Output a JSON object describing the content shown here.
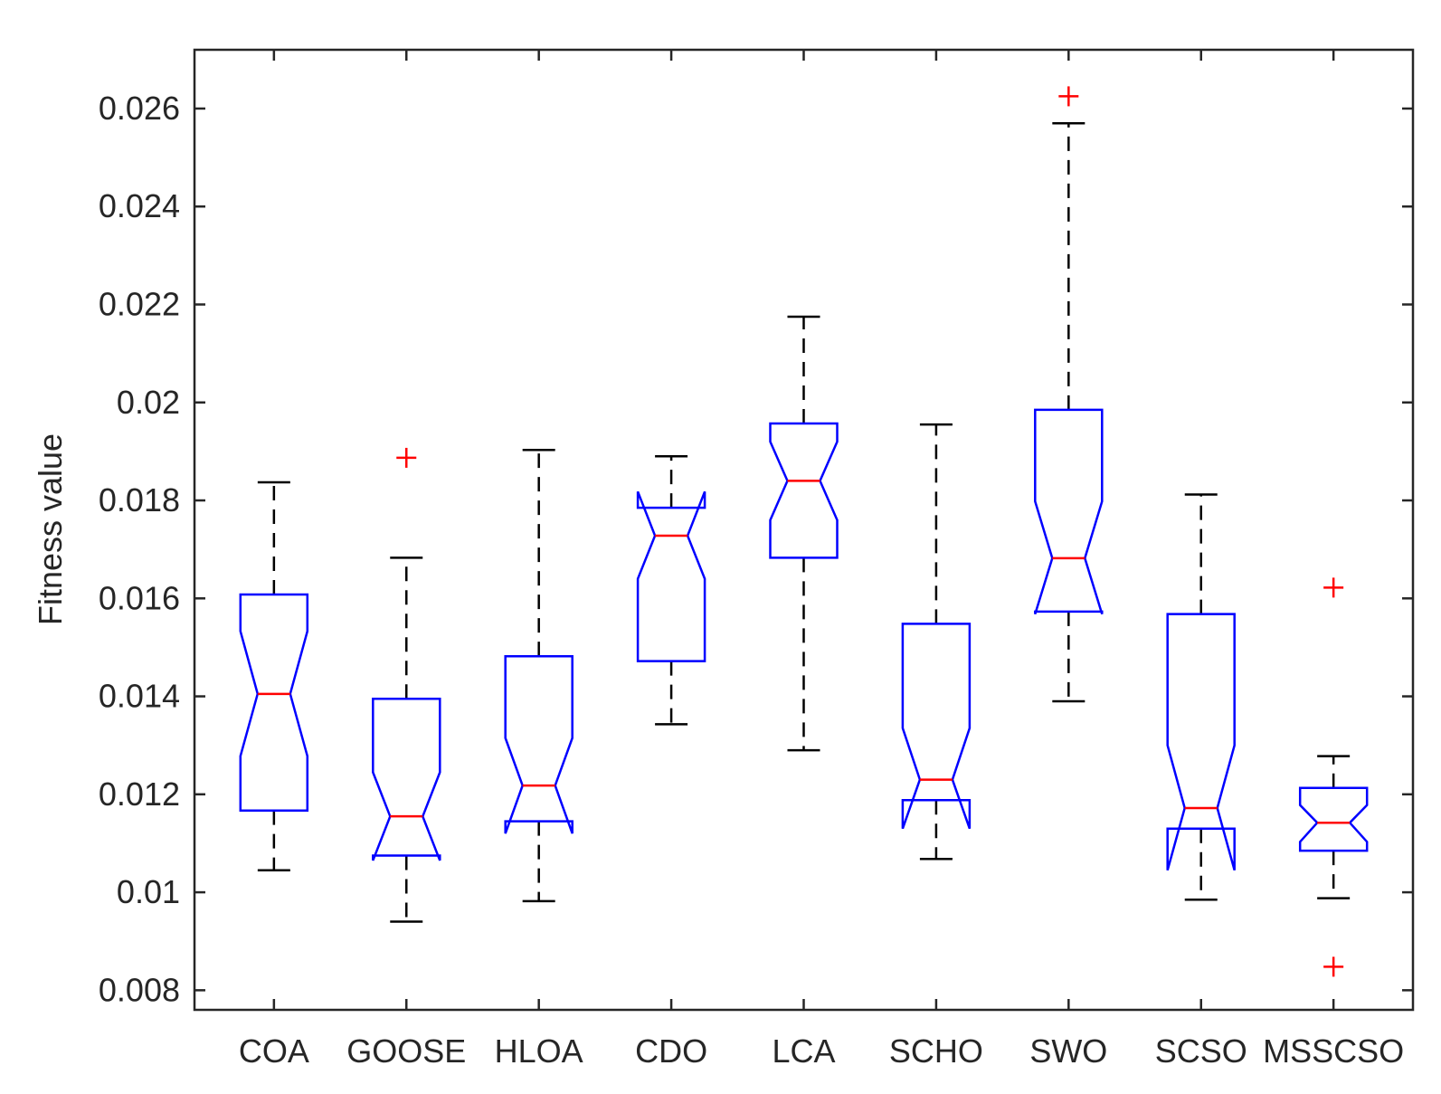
{
  "chart_data": {
    "type": "boxplot",
    "notched": true,
    "title": "",
    "xlabel": "",
    "ylabel": "Fitness value",
    "ylim": [
      0.0076,
      0.0272
    ],
    "yticks": [
      0.008,
      0.01,
      0.012,
      0.014,
      0.016,
      0.018,
      0.02,
      0.022,
      0.024,
      0.026
    ],
    "ytick_labels": [
      "0.008",
      "0.01",
      "0.012",
      "0.014",
      "0.016",
      "0.018",
      "0.02",
      "0.022",
      "0.024",
      "0.026"
    ],
    "categories": [
      "COA",
      "GOOSE",
      "HLOA",
      "CDO",
      "LCA",
      "SCHO",
      "SWO",
      "SCSO",
      "MSSCSO"
    ],
    "boxes": [
      {
        "name": "COA",
        "whisker_low": 0.01045,
        "q1": 0.01167,
        "median": 0.01405,
        "q3": 0.01608,
        "whisker_high": 0.01837,
        "notch_low": 0.01278,
        "notch_high": 0.01533,
        "outliers": []
      },
      {
        "name": "GOOSE",
        "whisker_low": 0.0094,
        "q1": 0.01075,
        "median": 0.01155,
        "q3": 0.01395,
        "whisker_high": 0.01683,
        "notch_low": 0.01065,
        "notch_high": 0.01245,
        "outliers": [
          0.01887
        ]
      },
      {
        "name": "HLOA",
        "whisker_low": 0.00982,
        "q1": 0.01145,
        "median": 0.01218,
        "q3": 0.01482,
        "whisker_high": 0.01903,
        "notch_low": 0.0112,
        "notch_high": 0.01315,
        "outliers": []
      },
      {
        "name": "CDO",
        "whisker_low": 0.01343,
        "q1": 0.01472,
        "median": 0.01728,
        "q3": 0.01785,
        "whisker_high": 0.0189,
        "notch_low": 0.0164,
        "notch_high": 0.01818,
        "outliers": []
      },
      {
        "name": "LCA",
        "whisker_low": 0.0129,
        "q1": 0.01683,
        "median": 0.0184,
        "q3": 0.01957,
        "whisker_high": 0.02175,
        "notch_low": 0.0176,
        "notch_high": 0.0192,
        "outliers": []
      },
      {
        "name": "SCHO",
        "whisker_low": 0.01068,
        "q1": 0.01188,
        "median": 0.0123,
        "q3": 0.01548,
        "whisker_high": 0.01955,
        "notch_low": 0.0113,
        "notch_high": 0.01335,
        "outliers": []
      },
      {
        "name": "SWO",
        "whisker_low": 0.0139,
        "q1": 0.01573,
        "median": 0.01682,
        "q3": 0.01985,
        "whisker_high": 0.0257,
        "notch_low": 0.01568,
        "notch_high": 0.01798,
        "outliers": [
          0.02625
        ]
      },
      {
        "name": "SCSO",
        "whisker_low": 0.00985,
        "q1": 0.0113,
        "median": 0.01172,
        "q3": 0.01568,
        "whisker_high": 0.01812,
        "notch_low": 0.01045,
        "notch_high": 0.013,
        "outliers": []
      },
      {
        "name": "MSSCSO",
        "whisker_low": 0.00988,
        "q1": 0.01085,
        "median": 0.01142,
        "q3": 0.01213,
        "whisker_high": 0.01278,
        "notch_low": 0.01103,
        "notch_high": 0.01178,
        "outliers": [
          0.01622,
          0.00848
        ]
      }
    ],
    "colors": {
      "box": "#0000ff",
      "median": "#ff0000",
      "whisker": "#000000",
      "outlier": "#ff0000",
      "axes": "#262626"
    },
    "grid": false,
    "legend": "none"
  }
}
